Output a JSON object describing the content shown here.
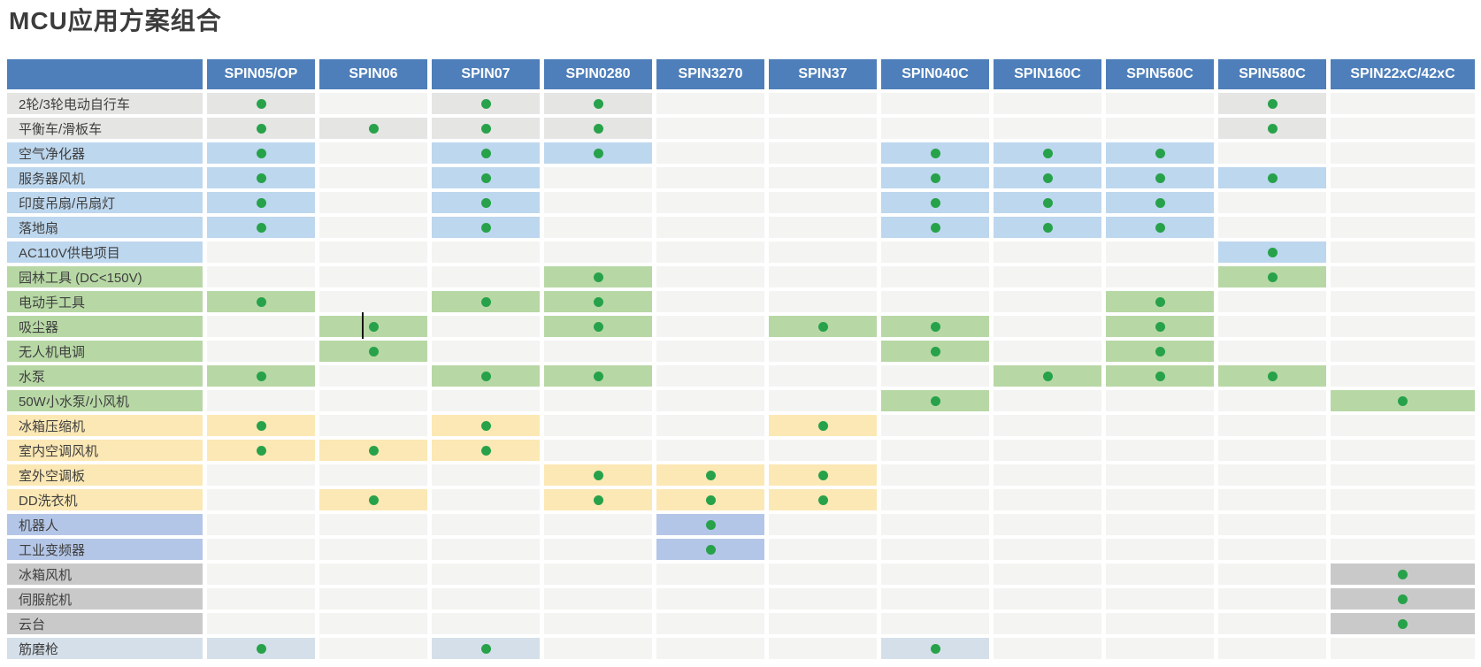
{
  "title": "MCU应用方案组合",
  "chart_data": {
    "type": "table",
    "title": "MCU应用方案组合",
    "columns": [
      "SPIN05/OP",
      "SPIN06",
      "SPIN07",
      "SPIN0280",
      "SPIN3270",
      "SPIN37",
      "SPIN040C",
      "SPIN160C",
      "SPIN560C",
      "SPIN580C",
      "SPIN22xC/42xC"
    ],
    "dot_symbol": "●",
    "dot_meaning": "supported combination",
    "rows": [
      {
        "label": "2轮/3轮电动自行车",
        "category": "gray",
        "values": [
          1,
          0,
          1,
          1,
          0,
          0,
          0,
          0,
          0,
          1,
          0
        ]
      },
      {
        "label": "平衡车/滑板车",
        "category": "gray",
        "values": [
          1,
          1,
          1,
          1,
          0,
          0,
          0,
          0,
          0,
          1,
          0
        ]
      },
      {
        "label": "空气净化器",
        "category": "blue",
        "values": [
          1,
          0,
          1,
          1,
          0,
          0,
          1,
          1,
          1,
          0,
          0
        ]
      },
      {
        "label": "服务器风机",
        "category": "blue",
        "values": [
          1,
          0,
          1,
          0,
          0,
          0,
          1,
          1,
          1,
          1,
          0
        ]
      },
      {
        "label": "印度吊扇/吊扇灯",
        "category": "blue",
        "values": [
          1,
          0,
          1,
          0,
          0,
          0,
          1,
          1,
          1,
          0,
          0
        ]
      },
      {
        "label": "落地扇",
        "category": "blue",
        "values": [
          1,
          0,
          1,
          0,
          0,
          0,
          1,
          1,
          1,
          0,
          0
        ]
      },
      {
        "label": "AC110V供电项目",
        "category": "blue",
        "values": [
          0,
          0,
          0,
          0,
          0,
          0,
          0,
          0,
          0,
          1,
          0
        ]
      },
      {
        "label": "园林工具 (DC<150V)",
        "category": "green",
        "values": [
          0,
          0,
          0,
          1,
          0,
          0,
          0,
          0,
          0,
          1,
          0
        ]
      },
      {
        "label": "电动手工具",
        "category": "green",
        "values": [
          1,
          0,
          1,
          1,
          0,
          0,
          0,
          0,
          1,
          0,
          0
        ]
      },
      {
        "label": "吸尘器",
        "category": "green",
        "values": [
          0,
          1,
          0,
          1,
          0,
          1,
          1,
          0,
          1,
          0,
          0
        ]
      },
      {
        "label": "无人机电调",
        "category": "green",
        "values": [
          0,
          1,
          0,
          0,
          0,
          0,
          1,
          0,
          1,
          0,
          0
        ]
      },
      {
        "label": "水泵",
        "category": "green",
        "values": [
          1,
          0,
          1,
          1,
          0,
          0,
          0,
          1,
          1,
          1,
          0
        ]
      },
      {
        "label": "50W小水泵/小风机",
        "category": "green",
        "values": [
          0,
          0,
          0,
          0,
          0,
          0,
          1,
          0,
          0,
          0,
          1
        ]
      },
      {
        "label": "冰箱压缩机",
        "category": "yellow",
        "values": [
          1,
          0,
          1,
          0,
          0,
          1,
          0,
          0,
          0,
          0,
          0
        ]
      },
      {
        "label": "室内空调风机",
        "category": "yellow",
        "values": [
          1,
          1,
          1,
          0,
          0,
          0,
          0,
          0,
          0,
          0,
          0
        ]
      },
      {
        "label": "室外空调板",
        "category": "yellow",
        "values": [
          0,
          0,
          0,
          1,
          1,
          1,
          0,
          0,
          0,
          0,
          0
        ]
      },
      {
        "label": "DD洗衣机",
        "category": "yellow",
        "values": [
          0,
          1,
          0,
          1,
          1,
          1,
          0,
          0,
          0,
          0,
          0
        ]
      },
      {
        "label": "机器人",
        "category": "periwinkle",
        "values": [
          0,
          0,
          0,
          0,
          1,
          0,
          0,
          0,
          0,
          0,
          0
        ]
      },
      {
        "label": "工业变频器",
        "category": "periwinkle",
        "values": [
          0,
          0,
          0,
          0,
          1,
          0,
          0,
          0,
          0,
          0,
          0
        ]
      },
      {
        "label": "冰箱风机",
        "category": "darkgray",
        "values": [
          0,
          0,
          0,
          0,
          0,
          0,
          0,
          0,
          0,
          0,
          1
        ]
      },
      {
        "label": "伺服舵机",
        "category": "darkgray",
        "values": [
          0,
          0,
          0,
          0,
          0,
          0,
          0,
          0,
          0,
          0,
          1
        ]
      },
      {
        "label": "云台",
        "category": "darkgray",
        "values": [
          0,
          0,
          0,
          0,
          0,
          0,
          0,
          0,
          0,
          0,
          1
        ]
      },
      {
        "label": "筋磨枪",
        "category": "lightblue",
        "values": [
          1,
          0,
          1,
          0,
          0,
          0,
          1,
          0,
          0,
          0,
          0
        ]
      }
    ]
  },
  "cursor_artifact": {
    "row_index": 9,
    "col_index": 1
  },
  "colors": {
    "header_bg": "#4e7fba",
    "header_text": "#ffffff",
    "dot": "#27a24a",
    "empty_cell": "#f4f4f2",
    "title_text": "#3c3c3c",
    "label_text": "#3f3f3f",
    "categories": {
      "gray": "#e5e5e3",
      "blue": "#bdd7ee",
      "green": "#b7d8a5",
      "yellow": "#fce8b4",
      "periwinkle": "#b4c6e7",
      "darkgray": "#c9c9c9",
      "lightblue": "#d4dfe9"
    }
  }
}
